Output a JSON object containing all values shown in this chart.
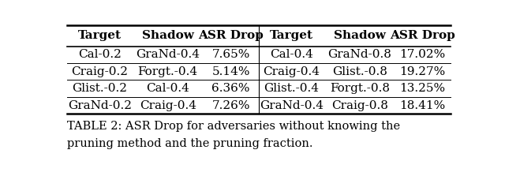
{
  "col_headers": [
    "Target",
    "Shadow",
    "ASR Drop",
    "Target",
    "Shadow",
    "ASR Drop"
  ],
  "rows": [
    [
      "Cal-0.2",
      "GraNd-0.4",
      "7.65%",
      "Cal-0.4",
      "GraNd-0.8",
      "17.02%"
    ],
    [
      "Craig-0.2",
      "Forgt.-0.4",
      "5.14%",
      "Craig-0.4",
      "Glist.-0.8",
      "19.27%"
    ],
    [
      "Glist.-0.2",
      "Cal-0.4",
      "6.36%",
      "Glist.-0.4",
      "Forgt.-0.8",
      "13.25%"
    ],
    [
      "GraNd-0.2",
      "Craig-0.4",
      "7.26%",
      "GraNd-0.4",
      "Craig-0.8",
      "18.41%"
    ]
  ],
  "caption_line1": "TABLE 2: ASR Drop for adversaries without knowing the",
  "caption_line2": "pruning method and the pruning fraction.",
  "background_color": "#ffffff",
  "header_bold": true,
  "font_size": 11,
  "caption_font_size": 10.5
}
